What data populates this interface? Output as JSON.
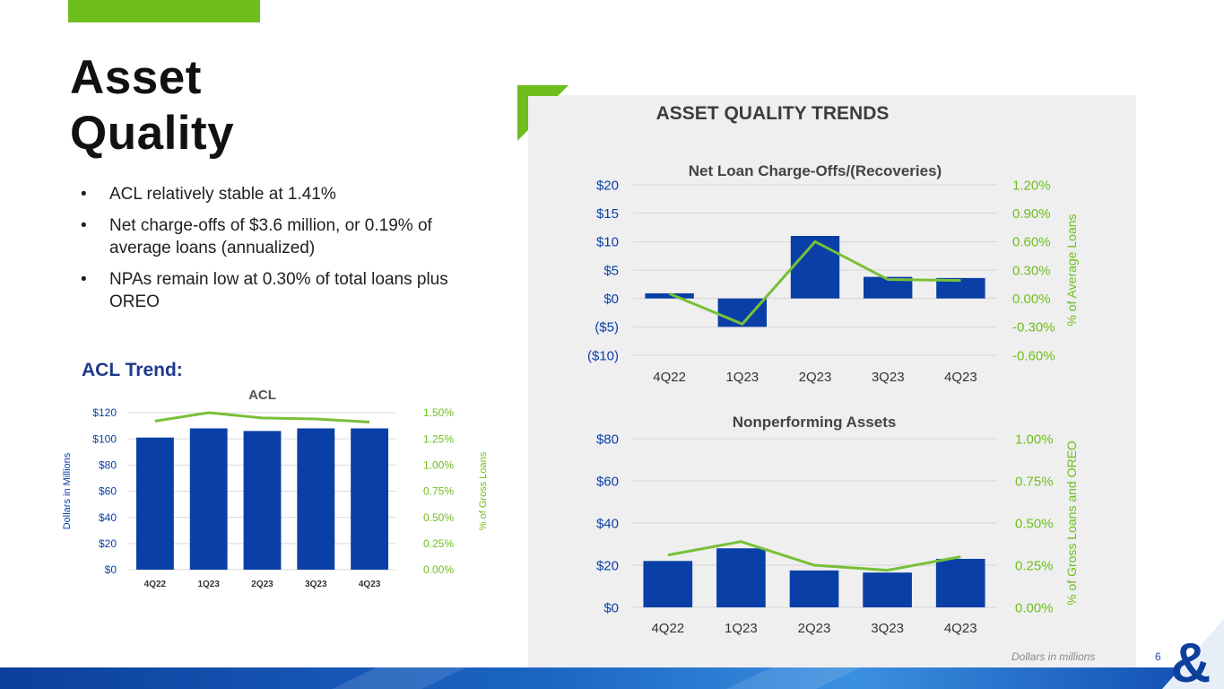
{
  "slide": {
    "title_line1": "Asset",
    "title_line2": "Quality",
    "bullets": [
      "ACL relatively stable at 1.41%",
      "Net charge-offs of $3.6 million, or 0.19% of average loans (annualized)",
      "NPAs remain low at 0.30% of total loans plus OREO"
    ],
    "acl_heading": "ACL Trend:",
    "panel_title": "ASSET QUALITY TRENDS",
    "footer_note": "Dollars in millions",
    "page_number": "6",
    "colors": {
      "bar": "#0a3fa8",
      "line": "#78c037",
      "accent_green": "#6ebe1e",
      "panel": "#efefef"
    }
  },
  "chart_data": [
    {
      "type": "bar",
      "title": "ACL",
      "categories": [
        "4Q22",
        "1Q23",
        "2Q23",
        "3Q23",
        "4Q23"
      ],
      "series": [
        {
          "name": "ACL ($M)",
          "axis": "left",
          "values": [
            101,
            108,
            106,
            108,
            108
          ]
        },
        {
          "name": "% of Gross Loans",
          "axis": "right",
          "type": "line",
          "values": [
            1.42,
            1.5,
            1.45,
            1.44,
            1.41
          ]
        }
      ],
      "ylabel": "Dollars in Millions",
      "y2label": "% of Gross Loans",
      "ylim": [
        0,
        120
      ],
      "y2lim": [
        0,
        1.5
      ],
      "yticks": [
        "$0",
        "$20",
        "$40",
        "$60",
        "$80",
        "$100",
        "$120"
      ],
      "y2ticks": [
        "0.00%",
        "0.25%",
        "0.50%",
        "0.75%",
        "1.00%",
        "1.25%",
        "1.50%"
      ]
    },
    {
      "type": "bar",
      "title": "Net Loan Charge-Offs/(Recoveries)",
      "categories": [
        "4Q22",
        "1Q23",
        "2Q23",
        "3Q23",
        "4Q23"
      ],
      "series": [
        {
          "name": "Net Charge-Offs ($M)",
          "axis": "left",
          "values": [
            0.9,
            -5.0,
            11.0,
            3.8,
            3.6
          ]
        },
        {
          "name": "% of Average Loans",
          "axis": "right",
          "type": "line",
          "values": [
            0.05,
            -0.27,
            0.6,
            0.2,
            0.19
          ]
        }
      ],
      "ylabel": "",
      "y2label": "% of Average Loans",
      "ylim": [
        -10,
        20
      ],
      "y2lim": [
        -0.6,
        1.2
      ],
      "yticks": [
        "($10)",
        "($5)",
        "$0",
        "$5",
        "$10",
        "$15",
        "$20"
      ],
      "y2ticks": [
        "-0.60%",
        "-0.30%",
        "0.00%",
        "0.30%",
        "0.60%",
        "0.90%",
        "1.20%"
      ]
    },
    {
      "type": "bar",
      "title": "Nonperforming Assets",
      "categories": [
        "4Q22",
        "1Q23",
        "2Q23",
        "3Q23",
        "4Q23"
      ],
      "series": [
        {
          "name": "NPAs ($M)",
          "axis": "left",
          "values": [
            22,
            28,
            17.5,
            16.5,
            23
          ]
        },
        {
          "name": "% of Gross Loans and OREO",
          "axis": "right",
          "type": "line",
          "values": [
            0.31,
            0.39,
            0.25,
            0.22,
            0.3
          ]
        }
      ],
      "ylabel": "",
      "y2label": "% of Gross Loans and OREO",
      "ylim": [
        0,
        80
      ],
      "y2lim": [
        0,
        1.0
      ],
      "yticks": [
        "$0",
        "$20",
        "$40",
        "$60",
        "$80"
      ],
      "y2ticks": [
        "0.00%",
        "0.25%",
        "0.50%",
        "0.75%",
        "1.00%"
      ]
    }
  ]
}
